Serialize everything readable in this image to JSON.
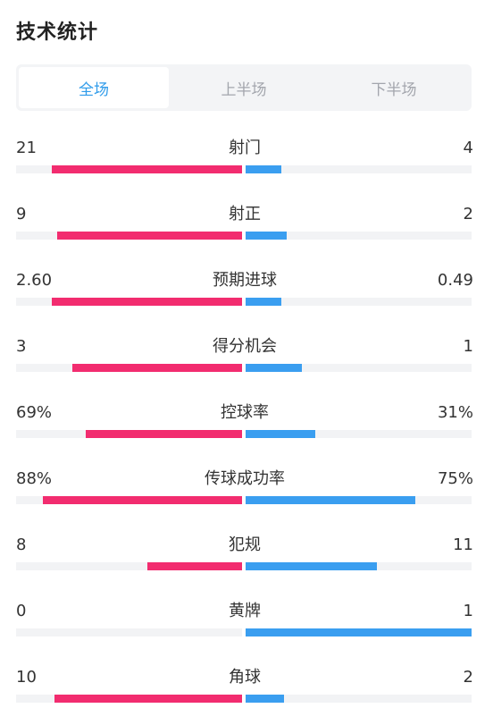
{
  "page_title": "技术统计",
  "tabs": [
    {
      "label": "全场",
      "active": true
    },
    {
      "label": "上半场",
      "active": false
    },
    {
      "label": "下半场",
      "active": false
    }
  ],
  "colors": {
    "home_bar": "#f22c6f",
    "away_bar": "#3a9ef0",
    "active_tab": "#2e9bea"
  },
  "stats": [
    {
      "label": "射门",
      "home": "21",
      "away": "4",
      "home_share": 0.84,
      "away_share": 0.16
    },
    {
      "label": "射正",
      "home": "9",
      "away": "2",
      "home_share": 0.82,
      "away_share": 0.18
    },
    {
      "label": "预期进球",
      "home": "2.60",
      "away": "0.49",
      "home_share": 0.84,
      "away_share": 0.16
    },
    {
      "label": "得分机会",
      "home": "3",
      "away": "1",
      "home_share": 0.75,
      "away_share": 0.25
    },
    {
      "label": "控球率",
      "home": "69%",
      "away": "31%",
      "home_share": 0.69,
      "away_share": 0.31
    },
    {
      "label": "传球成功率",
      "home": "88%",
      "away": "75%",
      "home_share": 0.88,
      "away_share": 0.75
    },
    {
      "label": "犯规",
      "home": "8",
      "away": "11",
      "home_share": 0.42,
      "away_share": 0.58
    },
    {
      "label": "黄牌",
      "home": "0",
      "away": "1",
      "home_share": 0.0,
      "away_share": 1.0
    },
    {
      "label": "角球",
      "home": "10",
      "away": "2",
      "home_share": 0.83,
      "away_share": 0.17
    }
  ]
}
